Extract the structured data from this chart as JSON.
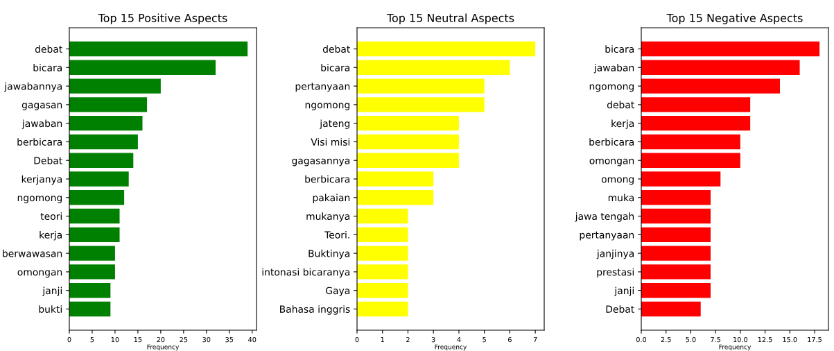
{
  "chart_data": [
    {
      "type": "bar",
      "orientation": "horizontal",
      "title": "Top 15 Positive Aspects",
      "xlabel": "Frequency",
      "categories": [
        "debat",
        "bicara",
        "jawabannya",
        "gagasan",
        "jawaban",
        "berbicara",
        "Debat",
        "kerjanya",
        "ngomong",
        "teori",
        "kerja",
        "berwawasan",
        "omongan",
        "janji",
        "bukti"
      ],
      "values": [
        39,
        32,
        20,
        17,
        16,
        15,
        14,
        13,
        12,
        11,
        11,
        10,
        10,
        9,
        9
      ],
      "color": "#008000",
      "xlim": [
        0,
        40.95
      ],
      "xticks": [
        0,
        5,
        10,
        15,
        20,
        25,
        30,
        35,
        40
      ]
    },
    {
      "type": "bar",
      "orientation": "horizontal",
      "title": "Top 15 Neutral Aspects",
      "xlabel": "Frequency",
      "categories": [
        "debat",
        "bicara",
        "pertanyaan",
        "ngomong",
        "jateng",
        "Visi misi",
        "gagasannya",
        "berbicara",
        "pakaian",
        "mukanya",
        "Teori.",
        "Buktinya",
        "intonasi bicaranya",
        "Gaya",
        "Bahasa inggris"
      ],
      "values": [
        7,
        6,
        5,
        5,
        4,
        4,
        4,
        3,
        3,
        2,
        2,
        2,
        2,
        2,
        2
      ],
      "color": "#ffff00",
      "xlim": [
        0,
        7.35
      ],
      "xticks": [
        0,
        1,
        2,
        3,
        4,
        5,
        6,
        7
      ]
    },
    {
      "type": "bar",
      "orientation": "horizontal",
      "title": "Top 15 Negative Aspects",
      "xlabel": "Frequency",
      "categories": [
        "bicara",
        "jawaban",
        "ngomong",
        "debat",
        "kerja",
        "berbicara",
        "omongan",
        "omong",
        "muka",
        "jawa tengah",
        "pertanyaan",
        "janjinya",
        "prestasi",
        "janji",
        "Debat"
      ],
      "values": [
        18,
        16,
        14,
        11,
        11,
        10,
        10,
        8,
        7,
        7,
        7,
        7,
        7,
        7,
        6
      ],
      "color": "#ff0000",
      "xlim": [
        0,
        18.9
      ],
      "xticks": [
        {
          "value": 0,
          "label": "0.0"
        },
        {
          "value": 2.5,
          "label": "2.5"
        },
        {
          "value": 5,
          "label": "5.0"
        },
        {
          "value": 7.5,
          "label": "7.5"
        },
        {
          "value": 10,
          "label": "10.0"
        },
        {
          "value": 12.5,
          "label": "12.5"
        },
        {
          "value": 15,
          "label": "15.0"
        },
        {
          "value": 17.5,
          "label": "17.5"
        }
      ]
    }
  ]
}
